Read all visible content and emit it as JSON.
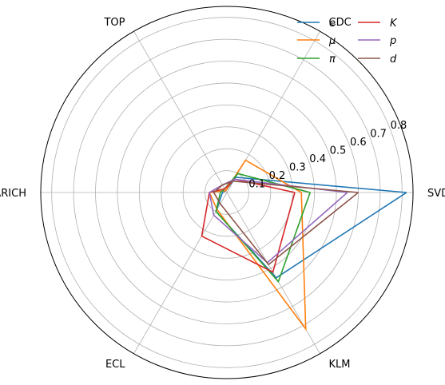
{
  "chart_data": {
    "type": "radar",
    "axes": [
      "SVD",
      "CDC",
      "TOP",
      "ARICH",
      "ECL",
      "KLM"
    ],
    "rlim": [
      0,
      0.85
    ],
    "r_ticks": [
      "0.1",
      "0.2",
      "0.3",
      "0.4",
      "0.5",
      "0.6",
      "0.7",
      "0.8"
    ],
    "grid": true,
    "legend": "top-right",
    "series": [
      {
        "name": "e",
        "color": "#1f77b4",
        "values": [
          0.82,
          0.08,
          0.01,
          0.02,
          0.1,
          0.45
        ]
      },
      {
        "name": "μ",
        "color": "#ff7f0e",
        "values": [
          0.34,
          0.17,
          0.01,
          0.08,
          0.09,
          0.72
        ]
      },
      {
        "name": "π",
        "color": "#2ca02c",
        "values": [
          0.38,
          0.1,
          0.02,
          0.03,
          0.1,
          0.47
        ]
      },
      {
        "name": "K",
        "color": "#d62728",
        "values": [
          0.31,
          0.07,
          0.02,
          0.08,
          0.23,
          0.42
        ]
      },
      {
        "name": "p",
        "color": "#9467bd",
        "values": [
          0.55,
          0.07,
          0.04,
          0.08,
          0.12,
          0.37
        ]
      },
      {
        "name": "d",
        "color": "#8c564b",
        "values": [
          0.6,
          0.06,
          0.04,
          0.06,
          0.06,
          0.38
        ]
      }
    ]
  }
}
